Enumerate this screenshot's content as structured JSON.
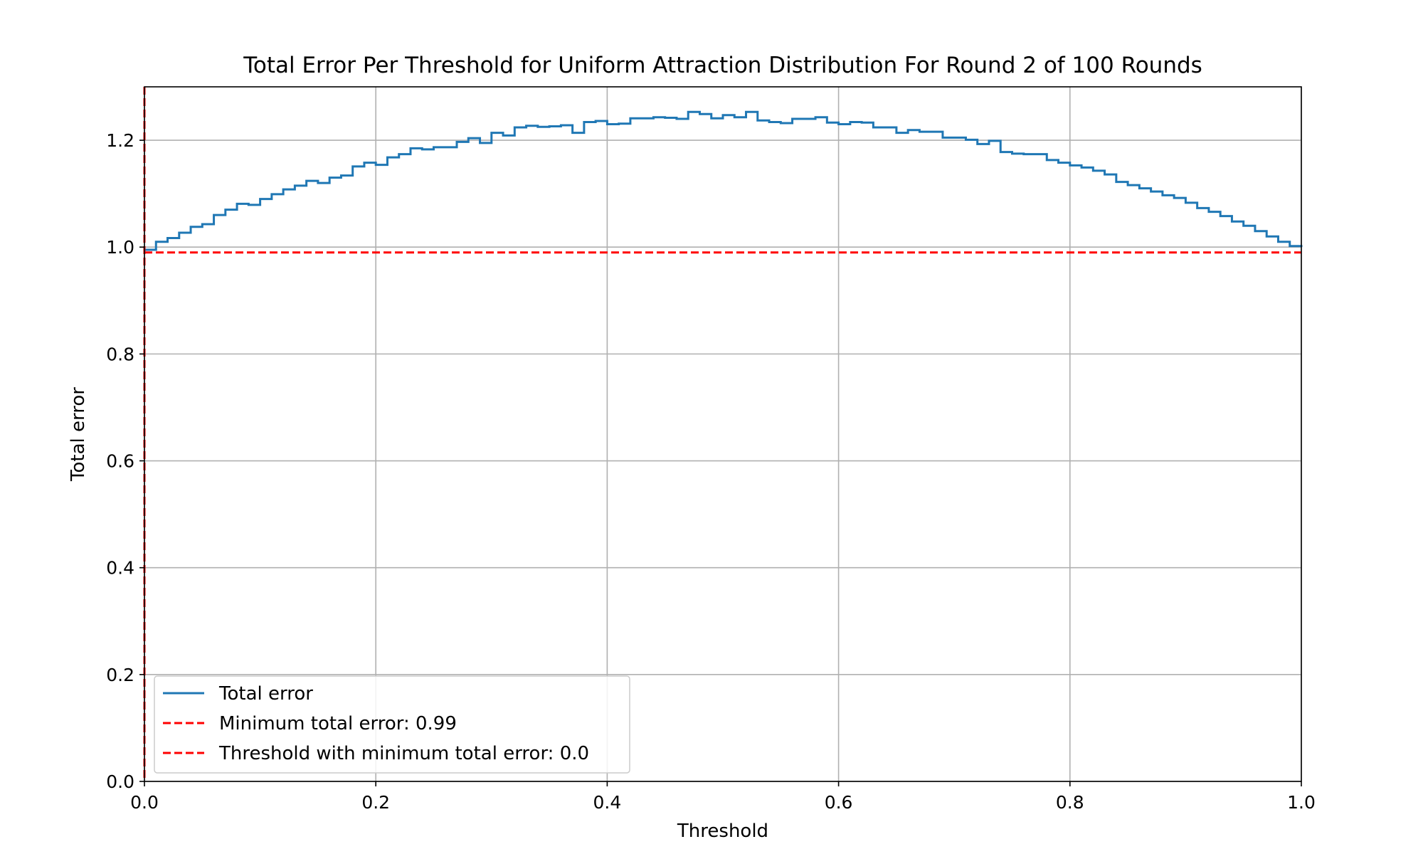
{
  "chart_data": {
    "type": "line",
    "title": "Total Error Per Threshold for Uniform Attraction Distribution For Round 2 of 100 Rounds",
    "xlabel": "Threshold",
    "ylabel": "Total error",
    "xlim": [
      0.0,
      1.0
    ],
    "ylim": [
      0.0,
      1.3
    ],
    "xticks": [
      "0.0",
      "0.2",
      "0.4",
      "0.6",
      "0.8",
      "1.0"
    ],
    "yticks": [
      "0.0",
      "0.2",
      "0.4",
      "0.6",
      "0.8",
      "1.0",
      "1.2"
    ],
    "grid": true,
    "legend_position": "lower left",
    "series": [
      {
        "name": "Total error",
        "style": "steps",
        "color": "#1f77b4",
        "x": [
          0.0,
          0.01,
          0.02,
          0.03,
          0.04,
          0.05,
          0.06,
          0.07,
          0.08,
          0.09,
          0.1,
          0.11,
          0.12,
          0.13,
          0.14,
          0.15,
          0.16,
          0.17,
          0.18,
          0.19,
          0.2,
          0.21,
          0.22,
          0.23,
          0.24,
          0.25,
          0.26,
          0.27,
          0.28,
          0.29,
          0.3,
          0.31,
          0.32,
          0.33,
          0.34,
          0.35,
          0.36,
          0.37,
          0.38,
          0.39,
          0.4,
          0.41,
          0.42,
          0.43,
          0.44,
          0.45,
          0.46,
          0.47,
          0.48,
          0.49,
          0.5,
          0.51,
          0.52,
          0.53,
          0.54,
          0.55,
          0.56,
          0.57,
          0.58,
          0.59,
          0.6,
          0.61,
          0.62,
          0.63,
          0.64,
          0.65,
          0.66,
          0.67,
          0.68,
          0.69,
          0.7,
          0.71,
          0.72,
          0.73,
          0.74,
          0.75,
          0.76,
          0.77,
          0.78,
          0.79,
          0.8,
          0.81,
          0.82,
          0.83,
          0.84,
          0.85,
          0.86,
          0.87,
          0.88,
          0.89,
          0.9,
          0.91,
          0.92,
          0.93,
          0.94,
          0.95,
          0.96,
          0.97,
          0.98,
          0.99,
          1.0
        ],
        "y": [
          0.995,
          1.01,
          1.017,
          1.027,
          1.038,
          1.043,
          1.06,
          1.07,
          1.081,
          1.079,
          1.09,
          1.099,
          1.108,
          1.115,
          1.124,
          1.12,
          1.13,
          1.134,
          1.151,
          1.158,
          1.154,
          1.168,
          1.174,
          1.185,
          1.183,
          1.187,
          1.187,
          1.197,
          1.204,
          1.195,
          1.214,
          1.209,
          1.224,
          1.227,
          1.225,
          1.226,
          1.228,
          1.214,
          1.234,
          1.236,
          1.23,
          1.231,
          1.241,
          1.241,
          1.243,
          1.242,
          1.24,
          1.253,
          1.249,
          1.241,
          1.247,
          1.243,
          1.253,
          1.237,
          1.234,
          1.232,
          1.24,
          1.24,
          1.243,
          1.233,
          1.23,
          1.234,
          1.233,
          1.224,
          1.224,
          1.214,
          1.219,
          1.216,
          1.216,
          1.205,
          1.205,
          1.201,
          1.193,
          1.199,
          1.178,
          1.175,
          1.174,
          1.174,
          1.163,
          1.158,
          1.153,
          1.149,
          1.143,
          1.136,
          1.122,
          1.116,
          1.11,
          1.104,
          1.097,
          1.092,
          1.083,
          1.073,
          1.066,
          1.058,
          1.048,
          1.04,
          1.03,
          1.02,
          1.01,
          1.002,
          1.0
        ]
      },
      {
        "name": "Minimum total error: 0.99",
        "style": "dashed-horizontal",
        "color": "#ff0000",
        "y": 0.99
      },
      {
        "name": "Threshold with minimum total error: 0.0",
        "style": "dashed-vertical",
        "color": "#ff0000",
        "x": 0.0
      }
    ]
  }
}
